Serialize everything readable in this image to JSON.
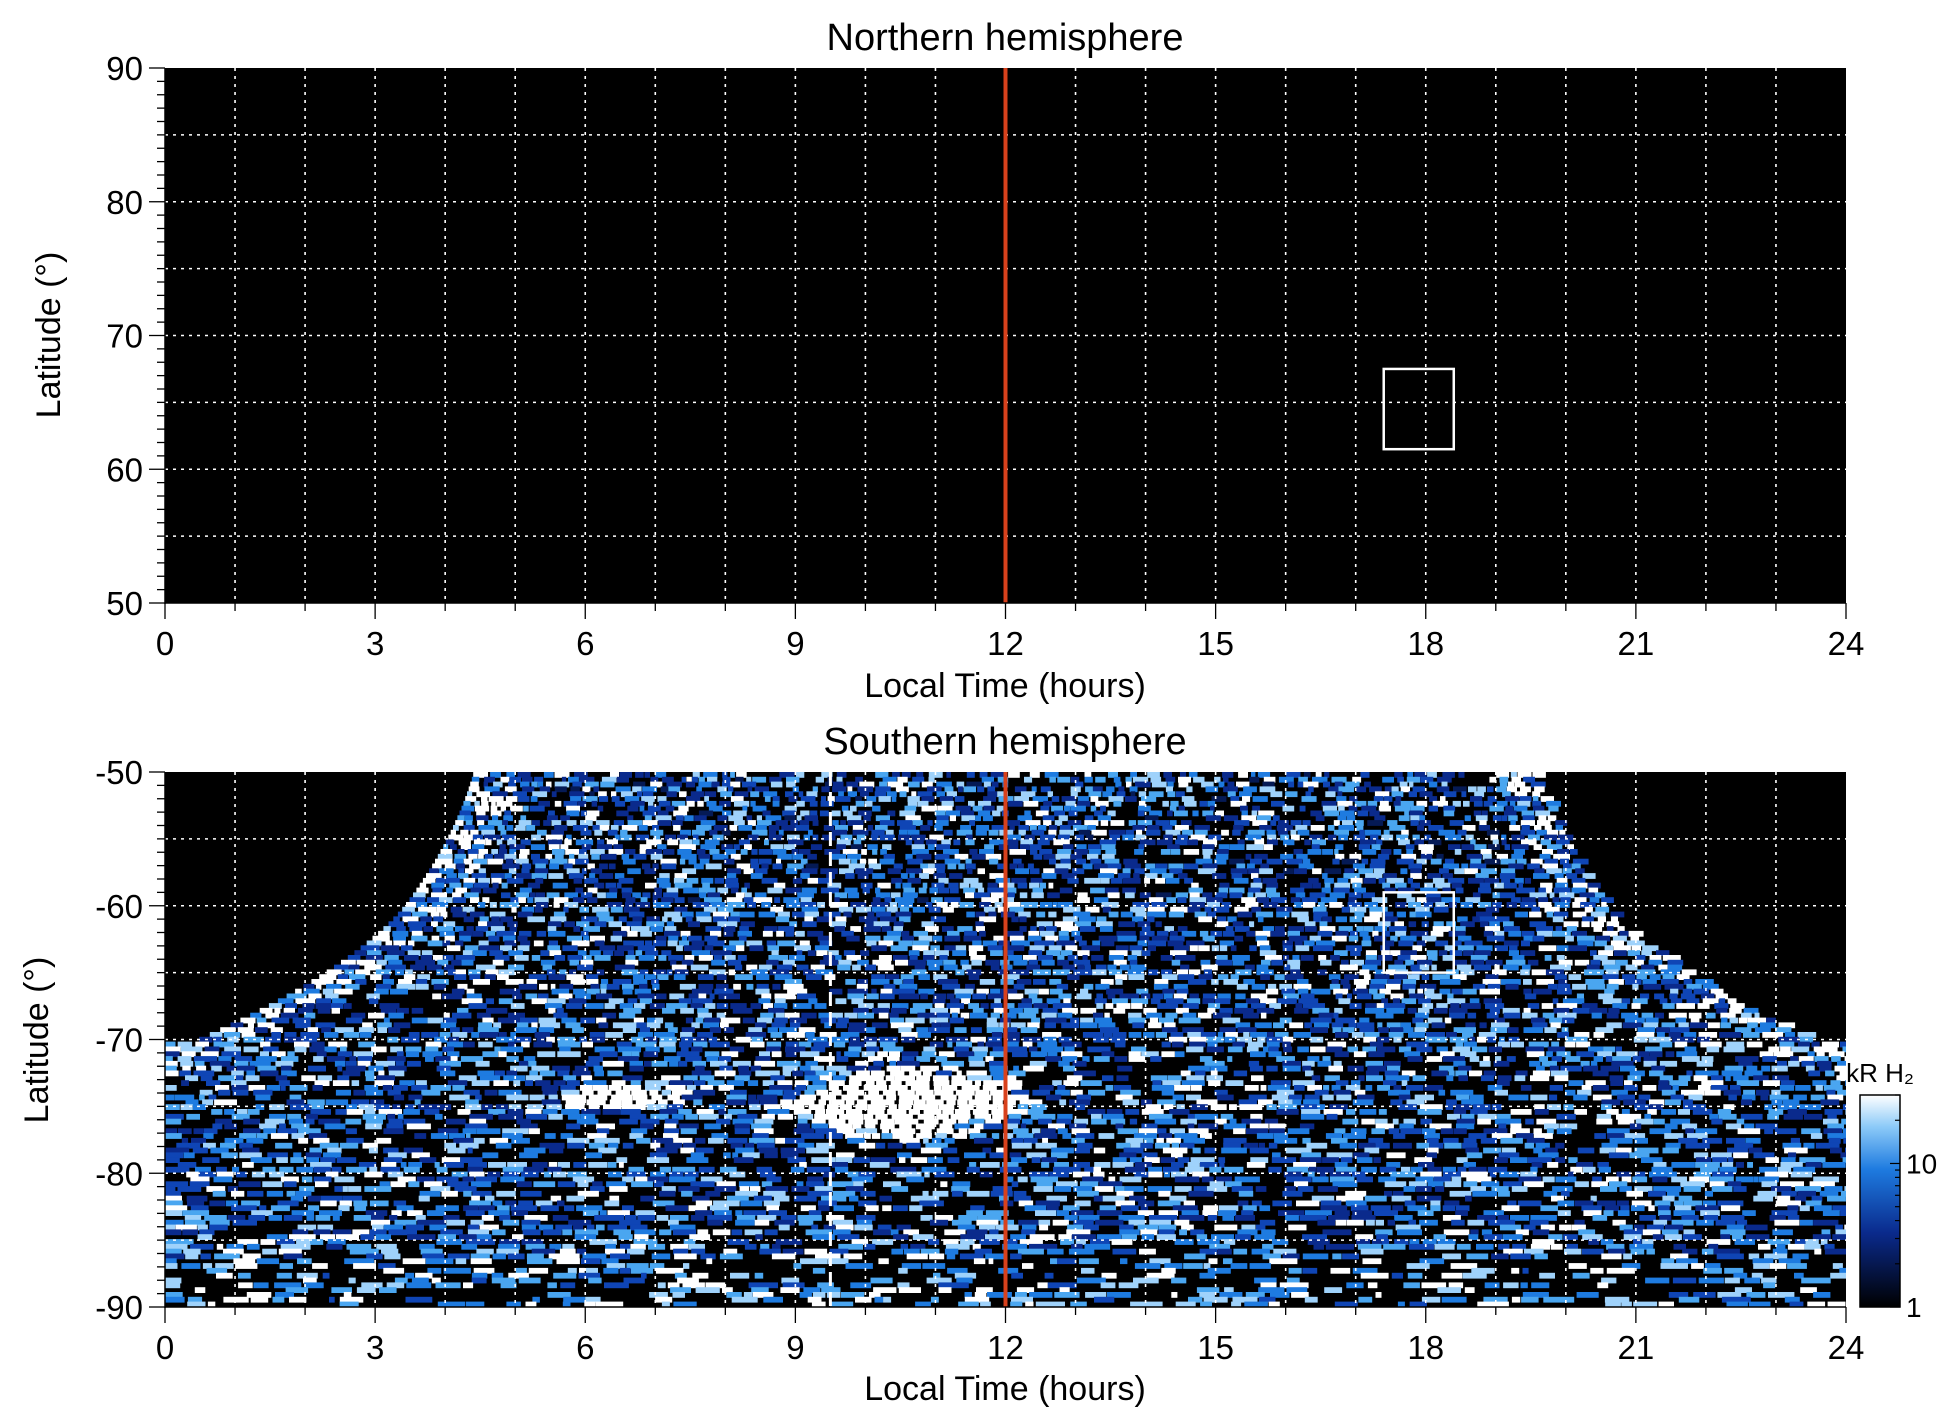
{
  "colors": {
    "background": "#000000",
    "grid": "#ffffff",
    "noon_line": "#d8411c",
    "aurora_low": "#0a2a8c",
    "aurora_mid": "#1e7be0",
    "aurora_high": "#ffffff"
  },
  "chart_data": [
    {
      "type": "heatmap",
      "title": "Northern hemisphere",
      "xlabel": "Local Time (hours)",
      "ylabel": "Latitude (°)",
      "xlim": [
        0,
        24
      ],
      "ylim": [
        50,
        90
      ],
      "xticks": [
        0,
        3,
        6,
        9,
        12,
        15,
        18,
        21,
        24
      ],
      "xtick_labels": [
        "0",
        "3",
        "6",
        "9",
        "12",
        "15",
        "18",
        "21",
        "24"
      ],
      "yticks": [
        50,
        60,
        70,
        80,
        90
      ],
      "ytick_labels": [
        "50",
        "60",
        "70",
        "80",
        "90"
      ],
      "grid": true,
      "grid_x_step": 1,
      "grid_y_step": 5,
      "noon_line_x": 12,
      "box": {
        "x": [
          17.4,
          18.4
        ],
        "y": [
          61.5,
          67.5
        ]
      },
      "data_present": false
    },
    {
      "type": "heatmap",
      "title": "Southern hemisphere",
      "xlabel": "Local Time (hours)",
      "ylabel": "Latitude (°)",
      "xlim": [
        0,
        24
      ],
      "ylim": [
        -90,
        -50
      ],
      "xticks": [
        0,
        3,
        6,
        9,
        12,
        15,
        18,
        21,
        24
      ],
      "xtick_labels": [
        "0",
        "3",
        "6",
        "9",
        "12",
        "15",
        "18",
        "21",
        "24"
      ],
      "yticks": [
        -90,
        -80,
        -70,
        -60,
        -50
      ],
      "ytick_labels": [
        "-90",
        "-80",
        "-70",
        "-60",
        "-50"
      ],
      "grid": true,
      "grid_x_step": 1,
      "grid_y_step": 5,
      "noon_line_x": 12,
      "dashed_line_x": 9.5,
      "box": {
        "x": [
          17.4,
          18.4
        ],
        "y": [
          -65,
          -59
        ]
      },
      "data_present": true,
      "coverage_boundary_lt_at_lat": [
        {
          "lat": -50,
          "lt_start": 4.4,
          "lt_end": 19.6
        },
        {
          "lat": -60,
          "lt_start": 3.4,
          "lt_end": 20.6
        },
        {
          "lat": -70,
          "lt_start": 0.4,
          "lt_end": 23.6
        }
      ],
      "bright_features": [
        {
          "lt_center": 10.4,
          "lat_center": -74.5,
          "lt_halfwidth": 2.0,
          "lat_halfwidth": 3.0
        },
        {
          "lt_center": 6.4,
          "lat_center": -74.0,
          "lt_halfwidth": 1.1,
          "lat_halfwidth": 1.2
        }
      ],
      "colorbar": {
        "label": "kR H₂",
        "scale": "log",
        "range": [
          1,
          30
        ],
        "ticks": [
          1,
          10
        ],
        "tick_labels": [
          "1",
          "10"
        ]
      }
    }
  ]
}
